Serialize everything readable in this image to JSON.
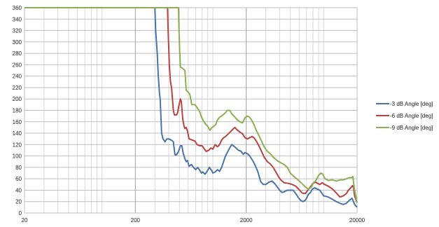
{
  "chart_data": {
    "type": "line",
    "x_scale": "log",
    "xlim": [
      20,
      20000
    ],
    "ylim": [
      0,
      360
    ],
    "y_ticks": [
      0,
      20,
      40,
      60,
      80,
      100,
      120,
      140,
      160,
      180,
      200,
      220,
      240,
      260,
      280,
      300,
      320,
      340,
      360
    ],
    "x_ticks": [
      20,
      200,
      2000,
      20000
    ],
    "x_tick_labels": [
      "20",
      "200",
      "2000",
      "20000"
    ],
    "grid": true,
    "legend_position": "right",
    "series": [
      {
        "name": "-3 dB Angle [deg]",
        "color": "#4a74a8",
        "points": [
          [
            20,
            360
          ],
          [
            100,
            360
          ],
          [
            300,
            360
          ],
          [
            305,
            320
          ],
          [
            315,
            280
          ],
          [
            322,
            240
          ],
          [
            330,
            210
          ],
          [
            335,
            200
          ],
          [
            340,
            170
          ],
          [
            345,
            140
          ],
          [
            355,
            130
          ],
          [
            370,
            125
          ],
          [
            385,
            130
          ],
          [
            400,
            130
          ],
          [
            420,
            128
          ],
          [
            440,
            125
          ],
          [
            455,
            102
          ],
          [
            470,
            102
          ],
          [
            490,
            108
          ],
          [
            510,
            118
          ],
          [
            525,
            118
          ],
          [
            540,
            105
          ],
          [
            560,
            95
          ],
          [
            575,
            90
          ],
          [
            590,
            92
          ],
          [
            610,
            82
          ],
          [
            640,
            85
          ],
          [
            670,
            80
          ],
          [
            700,
            76
          ],
          [
            730,
            80
          ],
          [
            760,
            75
          ],
          [
            790,
            70
          ],
          [
            810,
            72
          ],
          [
            850,
            68
          ],
          [
            880,
            72
          ],
          [
            930,
            80
          ],
          [
            980,
            74
          ],
          [
            1000,
            70
          ],
          [
            1050,
            72
          ],
          [
            1100,
            76
          ],
          [
            1150,
            73
          ],
          [
            1200,
            80
          ],
          [
            1300,
            100
          ],
          [
            1400,
            112
          ],
          [
            1480,
            120
          ],
          [
            1550,
            117
          ],
          [
            1620,
            114
          ],
          [
            1700,
            110
          ],
          [
            1800,
            108
          ],
          [
            1880,
            103
          ],
          [
            1950,
            106
          ],
          [
            2050,
            104
          ],
          [
            2150,
            100
          ],
          [
            2250,
            94
          ],
          [
            2350,
            88
          ],
          [
            2450,
            80
          ],
          [
            2550,
            72
          ],
          [
            2700,
            55
          ],
          [
            2850,
            50
          ],
          [
            3000,
            50
          ],
          [
            3200,
            54
          ],
          [
            3400,
            56
          ],
          [
            3600,
            52
          ],
          [
            3800,
            46
          ],
          [
            4000,
            40
          ],
          [
            4200,
            36
          ],
          [
            4400,
            37
          ],
          [
            4700,
            40
          ],
          [
            5000,
            40
          ],
          [
            5300,
            40
          ],
          [
            5600,
            34
          ],
          [
            5900,
            27
          ],
          [
            6200,
            22
          ],
          [
            6500,
            20
          ],
          [
            6800,
            22
          ],
          [
            7000,
            26
          ],
          [
            7300,
            33
          ],
          [
            7600,
            36
          ],
          [
            7900,
            42
          ],
          [
            8300,
            44
          ],
          [
            8700,
            42
          ],
          [
            9200,
            40
          ],
          [
            9600,
            35
          ],
          [
            10000,
            30
          ],
          [
            11000,
            28
          ],
          [
            12000,
            24
          ],
          [
            13000,
            20
          ],
          [
            14000,
            17
          ],
          [
            15000,
            15
          ],
          [
            16000,
            17
          ],
          [
            17000,
            22
          ],
          [
            18000,
            26
          ],
          [
            19000,
            15
          ],
          [
            20000,
            10
          ]
        ]
      },
      {
        "name": "-6 dB Angle [deg]",
        "color": "#b74442",
        "points": [
          [
            20,
            360
          ],
          [
            100,
            360
          ],
          [
            390,
            360
          ],
          [
            395,
            320
          ],
          [
            405,
            260
          ],
          [
            415,
            230
          ],
          [
            425,
            218
          ],
          [
            432,
            200
          ],
          [
            440,
            180
          ],
          [
            450,
            172
          ],
          [
            470,
            172
          ],
          [
            480,
            175
          ],
          [
            490,
            185
          ],
          [
            510,
            200
          ],
          [
            520,
            195
          ],
          [
            535,
            165
          ],
          [
            550,
            152
          ],
          [
            560,
            148
          ],
          [
            575,
            150
          ],
          [
            590,
            144
          ],
          [
            610,
            130
          ],
          [
            650,
            128
          ],
          [
            690,
            126
          ],
          [
            720,
            120
          ],
          [
            760,
            118
          ],
          [
            800,
            118
          ],
          [
            840,
            112
          ],
          [
            870,
            108
          ],
          [
            920,
            110
          ],
          [
            960,
            114
          ],
          [
            1000,
            112
          ],
          [
            1050,
            120
          ],
          [
            1100,
            116
          ],
          [
            1150,
            120
          ],
          [
            1200,
            128
          ],
          [
            1250,
            132
          ],
          [
            1300,
            134
          ],
          [
            1400,
            140
          ],
          [
            1500,
            146
          ],
          [
            1580,
            150
          ],
          [
            1650,
            146
          ],
          [
            1750,
            142
          ],
          [
            1850,
            139
          ],
          [
            1950,
            132
          ],
          [
            2050,
            130
          ],
          [
            2150,
            132
          ],
          [
            2250,
            134
          ],
          [
            2350,
            132
          ],
          [
            2450,
            127
          ],
          [
            2600,
            118
          ],
          [
            2750,
            108
          ],
          [
            2900,
            98
          ],
          [
            3100,
            90
          ],
          [
            3300,
            86
          ],
          [
            3500,
            80
          ],
          [
            3700,
            72
          ],
          [
            3900,
            64
          ],
          [
            4100,
            58
          ],
          [
            4400,
            53
          ],
          [
            4800,
            52
          ],
          [
            5200,
            50
          ],
          [
            5600,
            47
          ],
          [
            6000,
            41
          ],
          [
            6400,
            35
          ],
          [
            6800,
            34
          ],
          [
            7200,
            40
          ],
          [
            7600,
            46
          ],
          [
            8000,
            52
          ],
          [
            8400,
            54
          ],
          [
            8800,
            52
          ],
          [
            9200,
            50
          ],
          [
            9700,
            53
          ],
          [
            10200,
            50
          ],
          [
            11000,
            47
          ],
          [
            12000,
            42
          ],
          [
            13000,
            35
          ],
          [
            14000,
            28
          ],
          [
            15000,
            30
          ],
          [
            16000,
            34
          ],
          [
            16700,
            40
          ],
          [
            17500,
            44
          ],
          [
            18200,
            48
          ],
          [
            18600,
            44
          ],
          [
            19000,
            30
          ],
          [
            20000,
            18
          ]
        ]
      },
      {
        "name": "-9 dB Angle [deg]",
        "color": "#8daf55",
        "points": [
          [
            20,
            360
          ],
          [
            100,
            360
          ],
          [
            490,
            360
          ],
          [
            495,
            320
          ],
          [
            502,
            285
          ],
          [
            510,
            256
          ],
          [
            530,
            254
          ],
          [
            560,
            250
          ],
          [
            575,
            215
          ],
          [
            600,
            212
          ],
          [
            620,
            208
          ],
          [
            645,
            190
          ],
          [
            690,
            190
          ],
          [
            720,
            185
          ],
          [
            760,
            178
          ],
          [
            790,
            168
          ],
          [
            830,
            160
          ],
          [
            860,
            156
          ],
          [
            900,
            152
          ],
          [
            940,
            145
          ],
          [
            980,
            150
          ],
          [
            1020,
            152
          ],
          [
            1060,
            155
          ],
          [
            1100,
            163
          ],
          [
            1150,
            168
          ],
          [
            1200,
            170
          ],
          [
            1250,
            173
          ],
          [
            1300,
            176
          ],
          [
            1350,
            180
          ],
          [
            1420,
            180
          ],
          [
            1480,
            174
          ],
          [
            1550,
            170
          ],
          [
            1650,
            164
          ],
          [
            1750,
            160
          ],
          [
            1850,
            158
          ],
          [
            1950,
            167
          ],
          [
            2050,
            170
          ],
          [
            2150,
            168
          ],
          [
            2250,
            162
          ],
          [
            2350,
            155
          ],
          [
            2450,
            146
          ],
          [
            2600,
            136
          ],
          [
            2750,
            126
          ],
          [
            2900,
            116
          ],
          [
            3100,
            108
          ],
          [
            3300,
            104
          ],
          [
            3500,
            98
          ],
          [
            3800,
            92
          ],
          [
            4100,
            88
          ],
          [
            4400,
            85
          ],
          [
            4700,
            80
          ],
          [
            5000,
            70
          ],
          [
            5300,
            65
          ],
          [
            5700,
            60
          ],
          [
            6100,
            55
          ],
          [
            6500,
            50
          ],
          [
            6900,
            45
          ],
          [
            7300,
            42
          ],
          [
            7700,
            45
          ],
          [
            8100,
            53
          ],
          [
            8500,
            57
          ],
          [
            9000,
            66
          ],
          [
            9400,
            70
          ],
          [
            9800,
            68
          ],
          [
            10300,
            60
          ],
          [
            11000,
            57
          ],
          [
            12000,
            58
          ],
          [
            13000,
            56
          ],
          [
            14000,
            58
          ],
          [
            15000,
            58
          ],
          [
            16000,
            60
          ],
          [
            17000,
            62
          ],
          [
            17800,
            62
          ],
          [
            18300,
            64
          ],
          [
            19000,
            40
          ],
          [
            20000,
            18
          ]
        ]
      }
    ]
  }
}
